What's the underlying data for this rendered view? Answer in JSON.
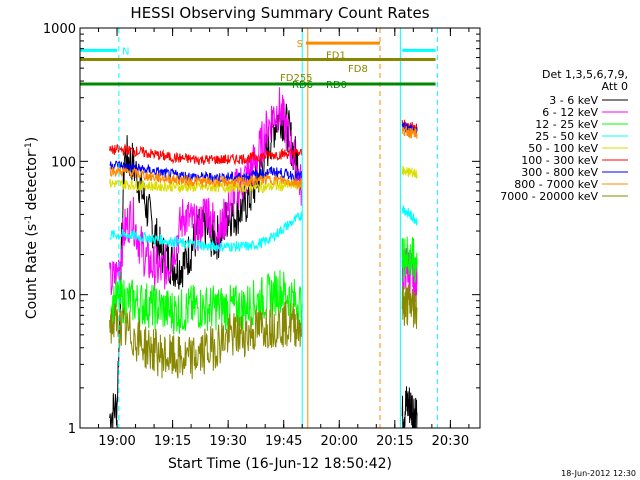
{
  "chart_data": {
    "type": "line",
    "title": "HESSI Observing Summary Count Rates",
    "xlabel": "Start Time (16-Jun-12 18:50:42)",
    "ylabel": "Count Rate (s",
    "ylabel_sup": "-1",
    "ylabel_tail": " detector",
    "ylabel_tail_sup": "-1",
    "ylabel_close": ")",
    "yscale": "log",
    "xlim_min": [
      0,
      108
    ],
    "ylim": [
      1,
      1000
    ],
    "x_ticks": [
      {
        "min": 10,
        "label": "19:00"
      },
      {
        "min": 25,
        "label": "19:15"
      },
      {
        "min": 40,
        "label": "19:30"
      },
      {
        "min": 55,
        "label": "19:45"
      },
      {
        "min": 70,
        "label": "20:00"
      },
      {
        "min": 85,
        "label": "20:15"
      },
      {
        "min": 100,
        "label": "20:30"
      }
    ],
    "y_ticks": [
      {
        "value": 1,
        "label": "1"
      },
      {
        "value": 10,
        "label": "10"
      },
      {
        "value": 100,
        "label": "100"
      },
      {
        "value": 1000,
        "label": "1000"
      }
    ],
    "legend": {
      "title_lines": [
        "Det 1,3,5,6,7,9,",
        "Att 0"
      ],
      "placement": "right"
    },
    "series": [
      {
        "name": "3 - 6 keV",
        "color": "#000000",
        "x": [
          8,
          10,
          12,
          14,
          16,
          18,
          20,
          22,
          24,
          26,
          28,
          30,
          32,
          34,
          36,
          38,
          40,
          42,
          44,
          46,
          48,
          50,
          52,
          54,
          56,
          58,
          60,
          87,
          88,
          89,
          90,
          91
        ],
        "y": [
          1.2,
          1.5,
          110,
          100,
          70,
          45,
          30,
          20,
          18,
          16,
          17,
          22,
          30,
          32,
          26,
          28,
          40,
          40,
          45,
          55,
          75,
          110,
          170,
          230,
          180,
          110,
          80,
          1.2,
          1.5,
          1.5,
          1.4,
          1.3
        ]
      },
      {
        "name": "6 - 12 keV",
        "color": "#ff00ff",
        "x": [
          8,
          10,
          12,
          14,
          16,
          18,
          20,
          22,
          24,
          26,
          28,
          30,
          32,
          34,
          36,
          38,
          40,
          42,
          44,
          46,
          48,
          50,
          52,
          54,
          56,
          58,
          60,
          87,
          88,
          89,
          90,
          91
        ],
        "y": [
          12,
          14,
          30,
          40,
          25,
          18,
          16,
          15,
          17,
          25,
          40,
          35,
          30,
          45,
          35,
          30,
          45,
          60,
          70,
          85,
          110,
          160,
          220,
          250,
          160,
          100,
          60,
          14,
          16,
          15,
          14,
          12
        ]
      },
      {
        "name": "12 - 25 keV",
        "color": "#00ff00",
        "x": [
          8,
          10,
          12,
          14,
          16,
          18,
          20,
          22,
          24,
          26,
          28,
          30,
          32,
          34,
          36,
          38,
          40,
          42,
          44,
          46,
          48,
          50,
          52,
          54,
          56,
          58,
          60,
          87,
          88,
          89,
          90,
          91
        ],
        "y": [
          8,
          9,
          9,
          9,
          8.5,
          8.5,
          8,
          8,
          7.5,
          7.5,
          7.5,
          8,
          8,
          8,
          8,
          8,
          8,
          8,
          8,
          8.5,
          9,
          9.5,
          10,
          11,
          10,
          9,
          8.5,
          18,
          20,
          19,
          18,
          16
        ]
      },
      {
        "name": "25 - 50 keV",
        "color": "#00ffff",
        "x": [
          8,
          10,
          12,
          14,
          16,
          18,
          20,
          22,
          24,
          26,
          28,
          30,
          32,
          34,
          36,
          38,
          40,
          42,
          44,
          46,
          48,
          50,
          52,
          54,
          56,
          58,
          60,
          87,
          88,
          89,
          90,
          91
        ],
        "y": [
          28,
          28,
          28,
          28,
          27,
          27,
          26,
          26,
          25,
          25,
          24,
          24,
          24,
          23,
          23,
          23,
          23,
          23,
          23,
          23,
          24,
          25,
          27,
          30,
          33,
          36,
          40,
          45,
          42,
          40,
          38,
          36
        ]
      },
      {
        "name": "50 - 100 keV",
        "color": "#dddd00",
        "x": [
          8,
          10,
          12,
          14,
          16,
          18,
          20,
          22,
          24,
          26,
          28,
          30,
          32,
          34,
          36,
          38,
          40,
          42,
          44,
          46,
          48,
          50,
          52,
          54,
          56,
          58,
          60,
          87,
          88,
          89,
          90,
          91
        ],
        "y": [
          68,
          68,
          67,
          67,
          66,
          66,
          65,
          65,
          65,
          64,
          64,
          64,
          64,
          64,
          64,
          64,
          64,
          64,
          64,
          64,
          64,
          64,
          65,
          65,
          66,
          66,
          66,
          85,
          84,
          83,
          82,
          80
        ]
      },
      {
        "name": "100 - 300 keV",
        "color": "#ff0000",
        "x": [
          8,
          10,
          12,
          14,
          16,
          18,
          20,
          22,
          24,
          26,
          28,
          30,
          32,
          34,
          36,
          38,
          40,
          42,
          44,
          46,
          48,
          50,
          52,
          54,
          56,
          58,
          60,
          87,
          88,
          89,
          90,
          91
        ],
        "y": [
          120,
          122,
          122,
          120,
          118,
          115,
          113,
          110,
          108,
          106,
          105,
          104,
          103,
          103,
          103,
          103,
          103,
          104,
          105,
          106,
          108,
          110,
          112,
          113,
          114,
          115,
          115,
          190,
          185,
          182,
          180,
          175
        ]
      },
      {
        "name": "300 - 800 keV",
        "color": "#0000ff",
        "x": [
          8,
          10,
          12,
          14,
          16,
          18,
          20,
          22,
          24,
          26,
          28,
          30,
          32,
          34,
          36,
          38,
          40,
          42,
          44,
          46,
          48,
          50,
          52,
          54,
          56,
          58,
          60,
          87,
          88,
          89,
          90,
          91
        ],
        "y": [
          95,
          94,
          92,
          90,
          88,
          86,
          84,
          82,
          80,
          79,
          78,
          77,
          76,
          76,
          76,
          76,
          76,
          76,
          77,
          78,
          80,
          82,
          84,
          82,
          80,
          78,
          77,
          180,
          178,
          175,
          172,
          170
        ]
      },
      {
        "name": "800 - 7000 keV",
        "color": "#ff8800",
        "x": [
          8,
          10,
          12,
          14,
          16,
          18,
          20,
          22,
          24,
          26,
          28,
          30,
          32,
          34,
          36,
          38,
          40,
          42,
          44,
          46,
          48,
          50,
          52,
          54,
          56,
          58,
          60,
          87,
          88,
          89,
          90,
          91
        ],
        "y": [
          85,
          84,
          83,
          82,
          80,
          78,
          76,
          75,
          74,
          73,
          72,
          71,
          71,
          70,
          70,
          70,
          70,
          70,
          70,
          71,
          72,
          73,
          73,
          72,
          71,
          70,
          70,
          170,
          168,
          165,
          163,
          160
        ]
      },
      {
        "name": "7000 - 20000 keV",
        "color": "#888800",
        "x": [
          8,
          10,
          12,
          14,
          16,
          18,
          20,
          22,
          24,
          26,
          28,
          30,
          32,
          34,
          36,
          38,
          40,
          42,
          44,
          46,
          48,
          50,
          52,
          54,
          56,
          58,
          60,
          87,
          88,
          89,
          90,
          91
        ],
        "y": [
          6,
          6,
          5.5,
          5,
          4.5,
          4,
          3.8,
          3.5,
          3.4,
          3.3,
          3.2,
          3.3,
          3.5,
          3.8,
          4,
          4.5,
          4.8,
          5,
          5,
          5.2,
          5.5,
          5.8,
          6,
          6,
          6,
          6,
          5.8,
          8,
          8.5,
          8.5,
          8.2,
          8
        ]
      }
    ],
    "flags": [
      {
        "label": "N",
        "color": "#00ffff",
        "x": [
          0,
          10
        ],
        "y": 680,
        "line": "solid"
      },
      {
        "label": "",
        "color": "#00ffff",
        "x": [
          87,
          96
        ],
        "y": 680,
        "line": "solid"
      },
      {
        "label": "S",
        "color": "#ff8800",
        "x": [
          61,
          81
        ],
        "y": 770,
        "line": "solid"
      },
      {
        "label": "FD1",
        "color": "#888800",
        "x": [
          0,
          96
        ],
        "y": 580,
        "line": "solid"
      },
      {
        "label": "FD8",
        "color": "#888800",
        "x": [],
        "y": 500,
        "line": "none"
      },
      {
        "label": "FD255",
        "color": "#888800",
        "x": [],
        "y": 430,
        "line": "none"
      },
      {
        "label": "RD6",
        "color": "#008800",
        "x": [
          0,
          96
        ],
        "y": 380,
        "line": "solid"
      },
      {
        "label": "RD0",
        "color": "#008800",
        "x": [],
        "y": 380,
        "line": "none"
      }
    ],
    "vertical_markers": [
      {
        "x": 0,
        "color": "#00ffff",
        "style": "solid"
      },
      {
        "x": 10.5,
        "color": "#00ffff",
        "style": "dashed"
      },
      {
        "x": 60,
        "color": "#00ffff",
        "style": "solid"
      },
      {
        "x": 61.5,
        "color": "#ff8800",
        "style": "solid"
      },
      {
        "x": 81,
        "color": "#ff8800",
        "style": "dashed"
      },
      {
        "x": 86.5,
        "color": "#00ffff",
        "style": "solid"
      },
      {
        "x": 96.5,
        "color": "#00ffff",
        "style": "dashed"
      }
    ]
  },
  "footer": {
    "timestamp": "18-Jun-2012 12:30"
  }
}
